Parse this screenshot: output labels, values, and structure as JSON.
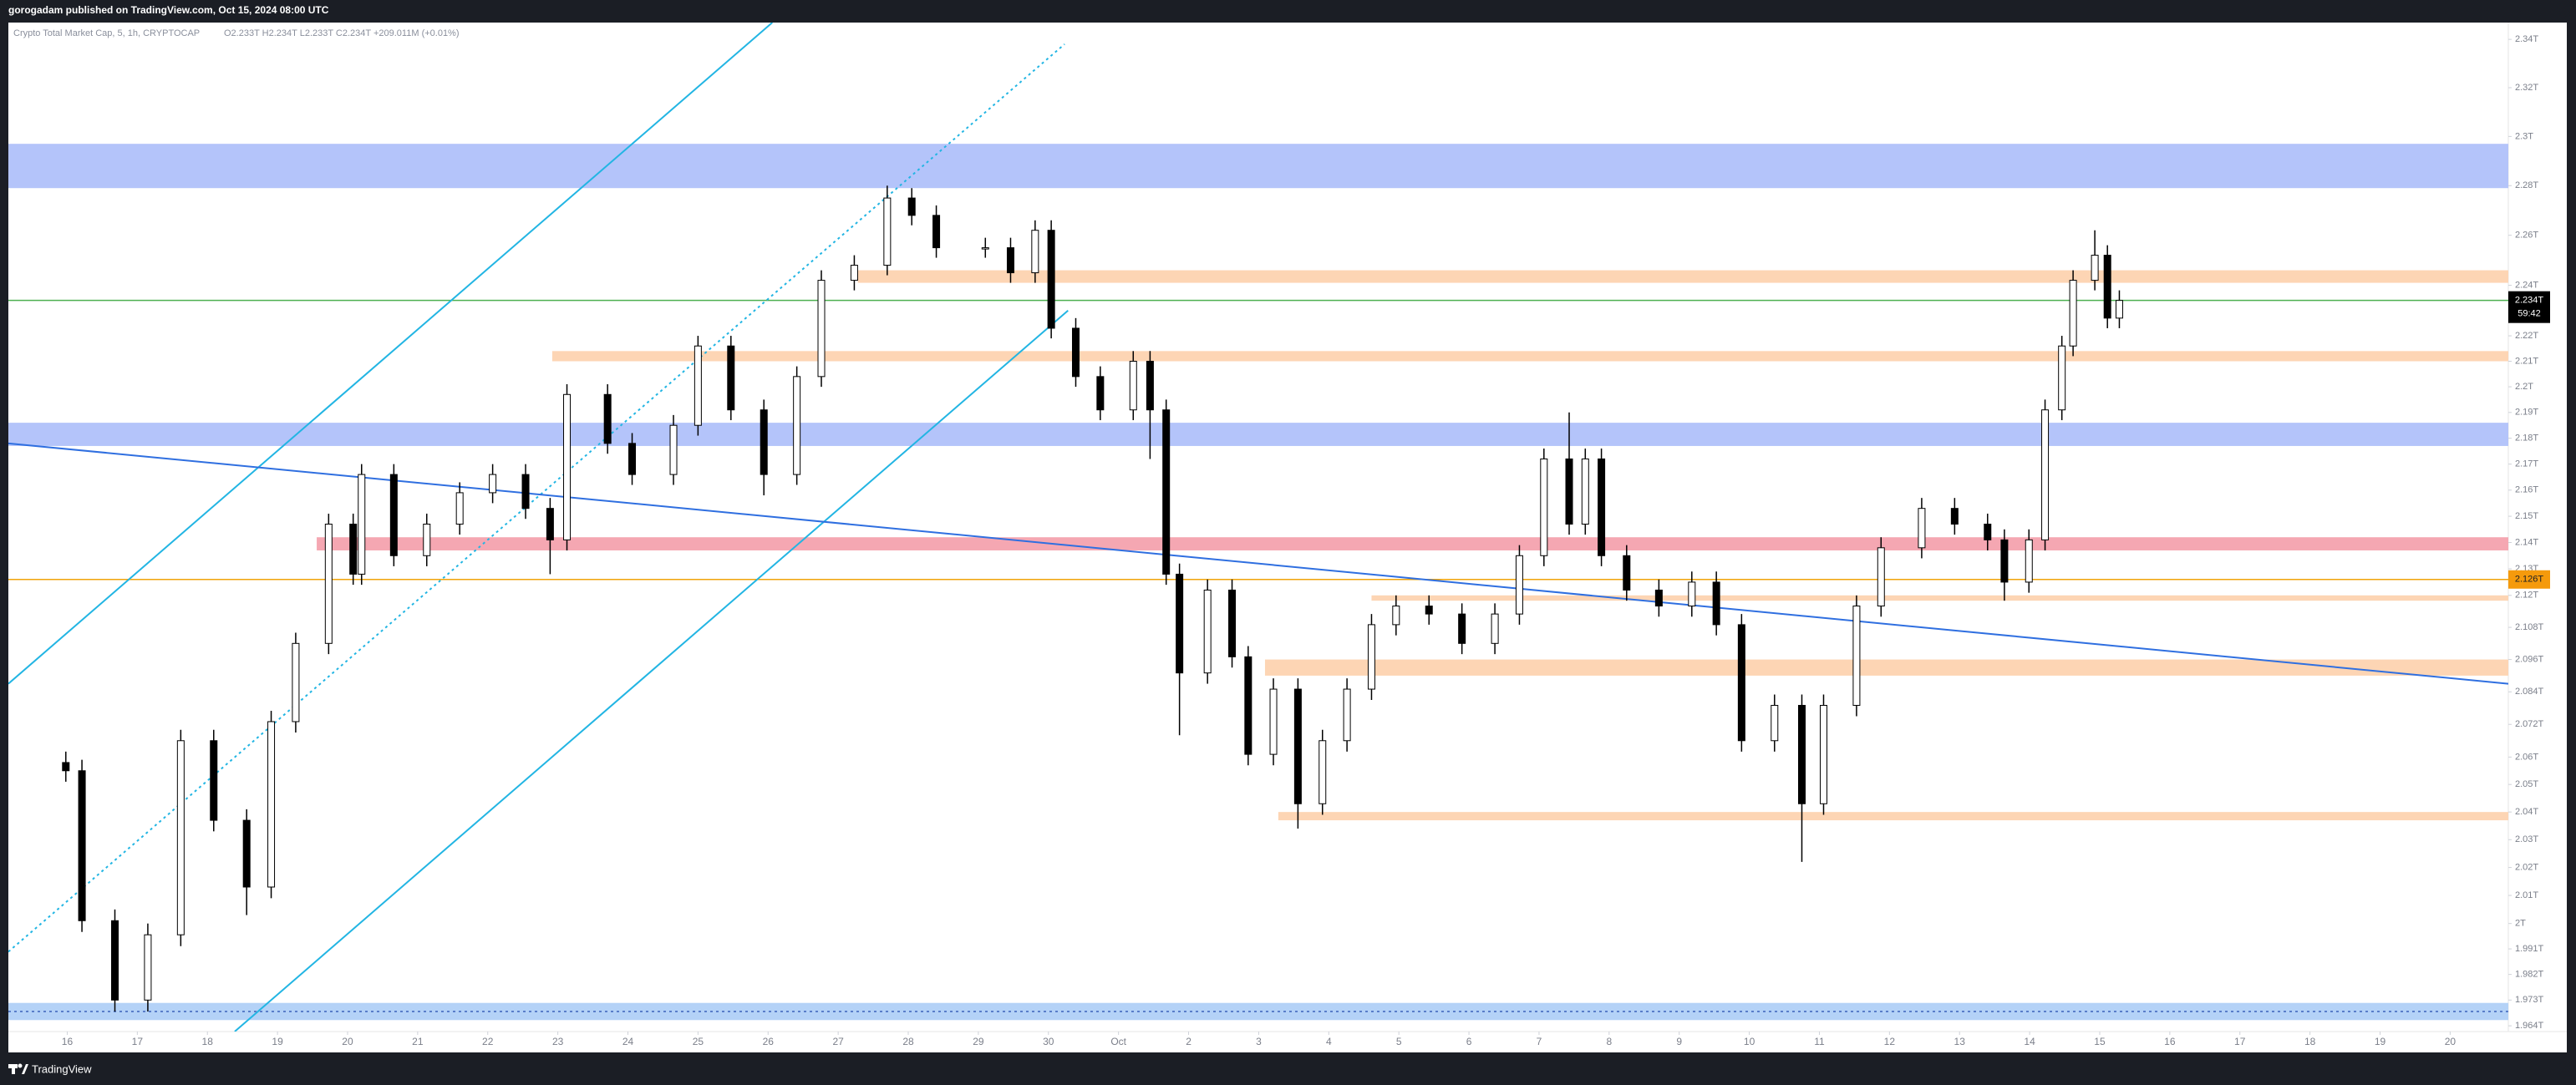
{
  "header": "gorogadam published on TradingView.com, Oct 15, 2024 08:00 UTC",
  "footer": "TradingView",
  "chart_data": {
    "type": "candlestick",
    "title": "Crypto Total Market Cap, 5, 1h, CRYPTOCAP",
    "subtitle": "O2.233T H2.234T L2.233T C2.234T +209.011M (+0.01%)",
    "log_scale": true,
    "up_color": "#ffffff",
    "down_color": "#000000",
    "x": [
      -0.02,
      0.21,
      0.68,
      1.15,
      1.62,
      2.09,
      2.56,
      2.91,
      3.26,
      3.73,
      4.08,
      4.2,
      4.66,
      5.13,
      5.6,
      6.07,
      6.54,
      6.89,
      7.13,
      7.71,
      8.06,
      8.65,
      9.0,
      9.47,
      9.94,
      10.41,
      10.76,
      11.23,
      11.7,
      12.05,
      12.4,
      13.1,
      13.46,
      13.81,
      14.04,
      14.39,
      14.74,
      15.21,
      15.45,
      15.68,
      15.87,
      16.27,
      16.62,
      16.85,
      17.21,
      17.56,
      17.91,
      18.26,
      18.61,
      18.96,
      19.43,
      19.9,
      20.37,
      20.72,
      21.07,
      21.43,
      21.66,
      21.89,
      22.25,
      22.71,
      23.18,
      23.53,
      23.89,
      24.36,
      24.75,
      25.06,
      25.53,
      25.88,
      26.46,
      26.93,
      27.4,
      27.64,
      27.99,
      28.22,
      28.46,
      28.62,
      28.93,
      29.11,
      29.28
    ],
    "open": [
      2.058,
      2.055,
      2.001,
      1.973,
      1.996,
      2.066,
      2.037,
      2.013,
      2.073,
      2.102,
      2.147,
      2.128,
      2.166,
      2.135,
      2.147,
      2.159,
      2.166,
      2.153,
      2.141,
      2.197,
      2.178,
      2.166,
      2.185,
      2.216,
      2.191,
      2.166,
      2.204,
      2.242,
      2.248,
      2.275,
      2.268,
      2.255,
      2.255,
      2.245,
      2.262,
      2.223,
      2.204,
      2.191,
      2.21,
      2.191,
      2.128,
      2.091,
      2.122,
      2.097,
      2.061,
      2.085,
      2.043,
      2.066,
      2.085,
      2.109,
      2.116,
      2.113,
      2.102,
      2.113,
      2.135,
      2.172,
      2.147,
      2.172,
      2.135,
      2.122,
      2.116,
      2.125,
      2.109,
      2.066,
      2.079,
      2.043,
      2.079,
      2.116,
      2.138,
      2.153,
      2.147,
      2.141,
      2.125,
      2.141,
      2.191,
      2.216,
      2.242,
      2.252,
      2.227
    ],
    "high": [
      2.062,
      2.059,
      2.005,
      2.0,
      2.07,
      2.07,
      2.041,
      2.077,
      2.106,
      2.151,
      2.151,
      2.17,
      2.17,
      2.151,
      2.163,
      2.17,
      2.17,
      2.157,
      2.201,
      2.201,
      2.182,
      2.189,
      2.22,
      2.22,
      2.195,
      2.208,
      2.246,
      2.252,
      2.28,
      2.279,
      2.272,
      2.259,
      2.259,
      2.266,
      2.266,
      2.227,
      2.208,
      2.214,
      2.214,
      2.195,
      2.132,
      2.126,
      2.126,
      2.101,
      2.089,
      2.089,
      2.07,
      2.089,
      2.113,
      2.12,
      2.12,
      2.117,
      2.117,
      2.139,
      2.176,
      2.19,
      2.176,
      2.176,
      2.139,
      2.126,
      2.129,
      2.129,
      2.113,
      2.083,
      2.083,
      2.083,
      2.12,
      2.142,
      2.157,
      2.157,
      2.151,
      2.145,
      2.145,
      2.195,
      2.22,
      2.246,
      2.262,
      2.256,
      2.238
    ],
    "low": [
      2.051,
      1.997,
      1.969,
      1.969,
      1.992,
      2.033,
      2.003,
      2.009,
      2.069,
      2.098,
      2.124,
      2.124,
      2.131,
      2.131,
      2.143,
      2.155,
      2.149,
      2.128,
      2.137,
      2.174,
      2.162,
      2.162,
      2.181,
      2.187,
      2.158,
      2.162,
      2.2,
      2.238,
      2.244,
      2.264,
      2.251,
      2.251,
      2.241,
      2.241,
      2.219,
      2.2,
      2.187,
      2.187,
      2.172,
      2.124,
      2.068,
      2.087,
      2.093,
      2.057,
      2.057,
      2.034,
      2.039,
      2.062,
      2.081,
      2.105,
      2.109,
      2.098,
      2.098,
      2.109,
      2.131,
      2.143,
      2.143,
      2.131,
      2.118,
      2.112,
      2.112,
      2.105,
      2.062,
      2.062,
      2.022,
      2.039,
      2.075,
      2.112,
      2.134,
      2.143,
      2.137,
      2.118,
      2.121,
      2.137,
      2.187,
      2.212,
      2.238,
      2.223,
      2.223
    ],
    "close": [
      2.055,
      2.001,
      1.973,
      1.996,
      2.066,
      2.037,
      2.013,
      2.073,
      2.102,
      2.147,
      2.128,
      2.166,
      2.135,
      2.147,
      2.159,
      2.166,
      2.153,
      2.141,
      2.197,
      2.178,
      2.166,
      2.185,
      2.216,
      2.191,
      2.166,
      2.204,
      2.242,
      2.248,
      2.275,
      2.268,
      2.255,
      2.255,
      2.245,
      2.262,
      2.223,
      2.204,
      2.191,
      2.21,
      2.191,
      2.128,
      2.091,
      2.122,
      2.097,
      2.061,
      2.085,
      2.043,
      2.066,
      2.085,
      2.109,
      2.116,
      2.113,
      2.102,
      2.113,
      2.135,
      2.172,
      2.147,
      2.172,
      2.135,
      2.122,
      2.116,
      2.125,
      2.109,
      2.066,
      2.079,
      2.043,
      2.079,
      2.116,
      2.138,
      2.153,
      2.147,
      2.141,
      2.125,
      2.141,
      2.191,
      2.216,
      2.242,
      2.252,
      2.227,
      2.234
    ],
    "xlim": [
      -0.84,
      34.83
    ],
    "ylim": [
      1.962,
      2.347
    ],
    "xticks": [
      {
        "value": 0,
        "label": "16"
      },
      {
        "value": 1,
        "label": "17"
      },
      {
        "value": 2,
        "label": "18"
      },
      {
        "value": 3,
        "label": "19"
      },
      {
        "value": 4,
        "label": "20"
      },
      {
        "value": 5,
        "label": "21"
      },
      {
        "value": 6,
        "label": "22"
      },
      {
        "value": 7,
        "label": "23"
      },
      {
        "value": 8,
        "label": "24"
      },
      {
        "value": 9,
        "label": "25"
      },
      {
        "value": 10,
        "label": "26"
      },
      {
        "value": 11,
        "label": "27"
      },
      {
        "value": 12,
        "label": "28"
      },
      {
        "value": 13,
        "label": "29"
      },
      {
        "value": 14,
        "label": "30"
      },
      {
        "value": 15,
        "label": "Oct"
      },
      {
        "value": 16,
        "label": "2"
      },
      {
        "value": 17,
        "label": "3"
      },
      {
        "value": 18,
        "label": "4"
      },
      {
        "value": 19,
        "label": "5"
      },
      {
        "value": 20,
        "label": "6"
      },
      {
        "value": 21,
        "label": "7"
      },
      {
        "value": 22,
        "label": "8"
      },
      {
        "value": 23,
        "label": "9"
      },
      {
        "value": 24,
        "label": "10"
      },
      {
        "value": 25,
        "label": "11"
      },
      {
        "value": 26,
        "label": "12"
      },
      {
        "value": 27,
        "label": "13"
      },
      {
        "value": 28,
        "label": "14"
      },
      {
        "value": 29,
        "label": "15"
      },
      {
        "value": 30,
        "label": "16"
      },
      {
        "value": 31,
        "label": "17"
      },
      {
        "value": 32,
        "label": "18"
      },
      {
        "value": 33,
        "label": "19"
      },
      {
        "value": 34,
        "label": "20"
      }
    ],
    "yticks": [
      {
        "value": 2.34,
        "label": "2.34T"
      },
      {
        "value": 2.32,
        "label": "2.32T"
      },
      {
        "value": 2.3,
        "label": "2.3T"
      },
      {
        "value": 2.28,
        "label": "2.28T"
      },
      {
        "value": 2.26,
        "label": "2.26T"
      },
      {
        "value": 2.24,
        "label": "2.24T"
      },
      {
        "value": 2.22,
        "label": "2.22T"
      },
      {
        "value": 2.21,
        "label": "2.21T"
      },
      {
        "value": 2.2,
        "label": "2.2T"
      },
      {
        "value": 2.19,
        "label": "2.19T"
      },
      {
        "value": 2.18,
        "label": "2.18T"
      },
      {
        "value": 2.17,
        "label": "2.17T"
      },
      {
        "value": 2.16,
        "label": "2.16T"
      },
      {
        "value": 2.15,
        "label": "2.15T"
      },
      {
        "value": 2.14,
        "label": "2.14T"
      },
      {
        "value": 2.13,
        "label": "2.13T"
      },
      {
        "value": 2.12,
        "label": "2.12T"
      },
      {
        "value": 2.108,
        "label": "2.108T"
      },
      {
        "value": 2.096,
        "label": "2.096T"
      },
      {
        "value": 2.084,
        "label": "2.084T"
      },
      {
        "value": 2.072,
        "label": "2.072T"
      },
      {
        "value": 2.06,
        "label": "2.06T"
      },
      {
        "value": 2.05,
        "label": "2.05T"
      },
      {
        "value": 2.04,
        "label": "2.04T"
      },
      {
        "value": 2.03,
        "label": "2.03T"
      },
      {
        "value": 2.02,
        "label": "2.02T"
      },
      {
        "value": 2.01,
        "label": "2.01T"
      },
      {
        "value": 2,
        "label": "2T"
      },
      {
        "value": 1.991,
        "label": "1.991T"
      },
      {
        "value": 1.982,
        "label": "1.982T"
      },
      {
        "value": 1.973,
        "label": "1.973T"
      },
      {
        "value": 1.964,
        "label": "1.964T"
      }
    ],
    "zones": [
      {
        "range": [
          2.279,
          2.297
        ],
        "start": -0.84,
        "color": "#b4c4fa"
      },
      {
        "range": [
          2.241,
          2.246
        ],
        "start": 11.28,
        "color": "#fdd5b4"
      },
      {
        "range": [
          2.21,
          2.214
        ],
        "start": 6.92,
        "color": "#fdd5b4"
      },
      {
        "range": [
          2.177,
          2.186
        ],
        "start": -0.84,
        "color": "#b4c4fa"
      },
      {
        "range": [
          2.137,
          2.142
        ],
        "start": 3.56,
        "color": "#f5a7b2"
      },
      {
        "range": [
          2.118,
          2.12
        ],
        "start": 18.61,
        "color": "#fdd5b4"
      },
      {
        "range": [
          2.09,
          2.096
        ],
        "start": 17.09,
        "color": "#fdd5b4"
      },
      {
        "range": [
          2.037,
          2.04
        ],
        "start": 17.28,
        "color": "#fdd5b4"
      },
      {
        "range": [
          1.966,
          1.972
        ],
        "start": -0.84,
        "color": "#b4d2f7"
      }
    ],
    "lines": [
      {
        "points": [
          [
            -0.84,
            2.087
          ],
          [
            10.06,
            2.347
          ]
        ],
        "color": "#22b5e3",
        "dashed": false
      },
      {
        "points": [
          [
            2.39,
            1.962
          ],
          [
            14.28,
            2.23
          ]
        ],
        "color": "#22b5e3",
        "dashed": false
      },
      {
        "points": [
          [
            -0.84,
            1.99
          ],
          [
            14.23,
            2.338
          ]
        ],
        "color": "#22b5e3",
        "dashed": true
      },
      {
        "points": [
          [
            -0.84,
            2.178
          ],
          [
            34.83,
            2.087
          ]
        ],
        "color": "#2f6fe0",
        "dashed": false
      },
      {
        "points": [
          [
            -0.84,
            1.969
          ],
          [
            34.83,
            1.969
          ]
        ],
        "color": "#5a7ec9",
        "dashed": true
      }
    ],
    "price_lines": [
      {
        "value": 2.234,
        "label": "2.234T",
        "countdown": "59:42",
        "color": "#4caf50",
        "box": "#000000",
        "text": "#ffffff"
      },
      {
        "value": 2.126,
        "label": "2.126T",
        "color": "#f0a30a",
        "box": "#f59a0c",
        "text": "#1b1e25"
      }
    ]
  }
}
